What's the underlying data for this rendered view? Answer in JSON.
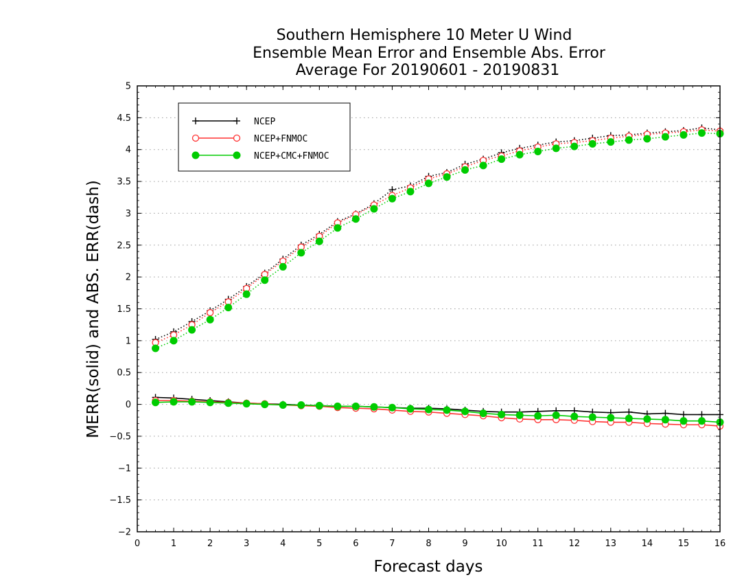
{
  "chart_data": {
    "type": "line",
    "title": [
      "Southern Hemisphere 10 Meter U Wind",
      "Ensemble Mean Error and Ensemble Abs. Error",
      "Average For 20190601 - 20190831"
    ],
    "xlabel": "Forecast days",
    "ylabel": "MERR(solid) and ABS. ERR(dash)",
    "xlim": [
      0,
      16
    ],
    "ylim": [
      -2,
      5
    ],
    "xticks": [
      0,
      1,
      2,
      3,
      4,
      5,
      6,
      7,
      8,
      9,
      10,
      11,
      12,
      13,
      14,
      15,
      16
    ],
    "yticks": [
      -2,
      -1.5,
      -1,
      -0.5,
      0,
      0.5,
      1,
      1.5,
      2,
      2.5,
      3,
      3.5,
      4,
      4.5,
      5
    ],
    "ytick_labels": [
      "−2",
      "−1.5",
      "−1",
      "−0.5",
      "0",
      "0.5",
      "1",
      "1.5",
      "2",
      "2.5",
      "3",
      "3.5",
      "4",
      "4.5",
      "5"
    ],
    "grid": "horizontal dotted",
    "legend": {
      "placement": "top-left"
    },
    "x": [
      0.5,
      1,
      1.5,
      2,
      2.5,
      3,
      3.5,
      4,
      4.5,
      5,
      5.5,
      6,
      6.5,
      7,
      7.5,
      8,
      8.5,
      9,
      9.5,
      10,
      10.5,
      11,
      11.5,
      12,
      12.5,
      13,
      13.5,
      14,
      14.5,
      15,
      15.5,
      16
    ],
    "series": [
      {
        "name": "NCEP",
        "color": "#000000",
        "marker": "plus",
        "merr": [
          0.11,
          0.1,
          0.08,
          0.06,
          0.04,
          0.02,
          0.01,
          0.0,
          -0.01,
          -0.02,
          -0.03,
          -0.03,
          -0.04,
          -0.05,
          -0.06,
          -0.06,
          -0.07,
          -0.09,
          -0.11,
          -0.12,
          -0.12,
          -0.11,
          -0.1,
          -0.1,
          -0.12,
          -0.13,
          -0.12,
          -0.15,
          -0.14,
          -0.16,
          -0.16,
          -0.16
        ],
        "abs_err": [
          1.02,
          1.14,
          1.3,
          1.47,
          1.65,
          1.85,
          2.06,
          2.28,
          2.5,
          2.67,
          2.87,
          2.99,
          3.15,
          3.37,
          3.43,
          3.58,
          3.64,
          3.77,
          3.85,
          3.95,
          4.02,
          4.07,
          4.12,
          4.14,
          4.18,
          4.22,
          4.23,
          4.26,
          4.28,
          4.3,
          4.34,
          4.31
        ]
      },
      {
        "name": "NCEP+FNMOC",
        "color": "#ff3030",
        "marker": "open-circle",
        "merr": [
          0.06,
          0.06,
          0.05,
          0.04,
          0.03,
          0.02,
          0.01,
          -0.01,
          -0.02,
          -0.03,
          -0.05,
          -0.06,
          -0.07,
          -0.09,
          -0.11,
          -0.12,
          -0.14,
          -0.16,
          -0.18,
          -0.21,
          -0.23,
          -0.24,
          -0.24,
          -0.25,
          -0.27,
          -0.28,
          -0.28,
          -0.3,
          -0.31,
          -0.32,
          -0.32,
          -0.34
        ],
        "abs_err": [
          0.97,
          1.09,
          1.25,
          1.44,
          1.61,
          1.82,
          2.04,
          2.25,
          2.47,
          2.64,
          2.85,
          2.98,
          3.13,
          3.28,
          3.4,
          3.54,
          3.62,
          3.73,
          3.83,
          3.9,
          3.98,
          4.04,
          4.09,
          4.11,
          4.14,
          4.18,
          4.21,
          4.24,
          4.26,
          4.28,
          4.31,
          4.29
        ]
      },
      {
        "name": "NCEP+CMC+FNMOC",
        "color": "#00cc00",
        "marker": "filled-circle",
        "merr": [
          0.03,
          0.04,
          0.04,
          0.03,
          0.02,
          0.01,
          0.0,
          -0.01,
          -0.01,
          -0.02,
          -0.03,
          -0.03,
          -0.04,
          -0.05,
          -0.07,
          -0.08,
          -0.09,
          -0.11,
          -0.14,
          -0.16,
          -0.17,
          -0.18,
          -0.17,
          -0.19,
          -0.2,
          -0.21,
          -0.22,
          -0.23,
          -0.24,
          -0.26,
          -0.26,
          -0.28
        ],
        "abs_err": [
          0.88,
          1.0,
          1.17,
          1.33,
          1.52,
          1.73,
          1.95,
          2.16,
          2.38,
          2.56,
          2.77,
          2.91,
          3.07,
          3.23,
          3.34,
          3.47,
          3.57,
          3.68,
          3.75,
          3.85,
          3.92,
          3.97,
          4.02,
          4.05,
          4.09,
          4.12,
          4.15,
          4.17,
          4.2,
          4.23,
          4.26,
          4.25
        ]
      }
    ]
  }
}
